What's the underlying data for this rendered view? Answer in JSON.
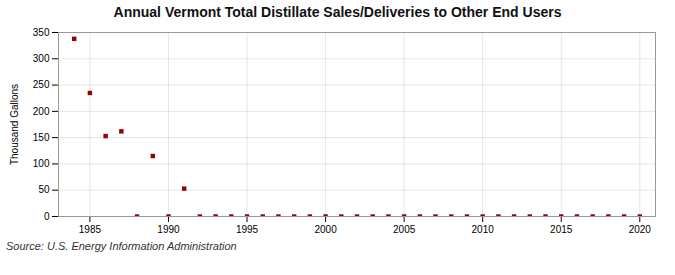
{
  "chart_data": {
    "type": "scatter",
    "title": "Annual Vermont Total Distillate Sales/Deliveries to Other End Users",
    "ylabel": "Thousand Gallons",
    "source": "Source: U.S. Energy Information Administration",
    "x": [
      1984,
      1985,
      1986,
      1987,
      1988,
      1989,
      1990,
      1991,
      1992,
      1993,
      1994,
      1995,
      1996,
      1997,
      1998,
      1999,
      2000,
      2001,
      2002,
      2003,
      2004,
      2005,
      2006,
      2007,
      2008,
      2009,
      2010,
      2011,
      2012,
      2013,
      2014,
      2015,
      2016,
      2017,
      2018,
      2019,
      2020
    ],
    "values": [
      338,
      235,
      153,
      162,
      0,
      115,
      0,
      53,
      0,
      0,
      0,
      0,
      0,
      0,
      0,
      0,
      0,
      0,
      0,
      0,
      0,
      0,
      0,
      0,
      0,
      0,
      0,
      0,
      0,
      0,
      0,
      0,
      0,
      0,
      0,
      0,
      0
    ],
    "color": "#990000",
    "marker": "square",
    "xlim": [
      1983,
      2021
    ],
    "xticks": [
      1985,
      1990,
      1995,
      2000,
      2005,
      2010,
      2015,
      2020
    ],
    "ylim": [
      0,
      350
    ],
    "yticks": [
      0,
      50,
      100,
      150,
      200,
      250,
      300,
      350
    ],
    "grid": true
  }
}
